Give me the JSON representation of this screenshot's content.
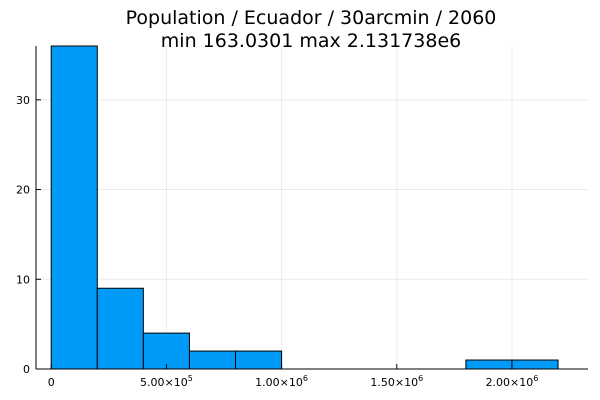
{
  "chart_data": {
    "type": "bar",
    "title_line1": "Population / Ecuador / 30arcmin / 2060",
    "title_line2": "min 163.0301  max 2.131738e6",
    "bin_width": 200000,
    "bins": [
      {
        "start": 0,
        "end": 200000,
        "count": 36
      },
      {
        "start": 200000,
        "end": 400000,
        "count": 9
      },
      {
        "start": 400000,
        "end": 600000,
        "count": 4
      },
      {
        "start": 600000,
        "end": 800000,
        "count": 2
      },
      {
        "start": 800000,
        "end": 1000000,
        "count": 2
      },
      {
        "start": 1000000,
        "end": 1200000,
        "count": 0
      },
      {
        "start": 1200000,
        "end": 1400000,
        "count": 0
      },
      {
        "start": 1400000,
        "end": 1600000,
        "count": 0
      },
      {
        "start": 1600000,
        "end": 1800000,
        "count": 0
      },
      {
        "start": 1800000,
        "end": 2000000,
        "count": 1
      },
      {
        "start": 2000000,
        "end": 2200000,
        "count": 1
      }
    ],
    "xlim": [
      -66000,
      2330000
    ],
    "ylim": [
      0,
      36
    ],
    "x_ticks": [
      {
        "value": 0,
        "mantissa": "0",
        "exponent": ""
      },
      {
        "value": 500000,
        "mantissa": "5.00×10",
        "exponent": "5"
      },
      {
        "value": 1000000,
        "mantissa": "1.00×10",
        "exponent": "6"
      },
      {
        "value": 1500000,
        "mantissa": "1.50×10",
        "exponent": "6"
      },
      {
        "value": 2000000,
        "mantissa": "2.00×10",
        "exponent": "6"
      }
    ],
    "y_ticks": [
      0,
      10,
      20,
      30
    ],
    "grid": true,
    "legend": false,
    "bar_color": "#009af9"
  }
}
